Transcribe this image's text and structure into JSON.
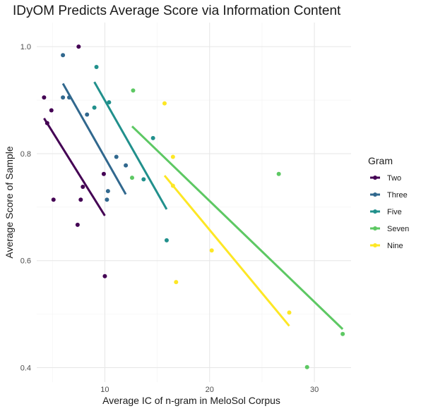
{
  "chart_data": {
    "type": "scatter",
    "title": "IDyOM Predicts Average Score via Information Content",
    "xlabel": "Average IC of n-gram in MeloSol Corpus",
    "ylabel": "Average Score of Sample",
    "xlim": [
      3.5,
      33.5
    ],
    "ylim": [
      0.373,
      1.045
    ],
    "x_ticks": [
      10,
      20,
      30
    ],
    "y_ticks": [
      0.4,
      0.6,
      0.8,
      1.0
    ],
    "y_tick_labels": [
      "0.4",
      "0.6",
      "0.8",
      "1.0"
    ],
    "grid": true,
    "legend_title": "Gram",
    "legend_position": "right",
    "series": [
      {
        "name": "Two",
        "color": "#440154",
        "points": [
          [
            4.2,
            0.905
          ],
          [
            4.5,
            0.857
          ],
          [
            4.9,
            0.881
          ],
          [
            5.1,
            0.714
          ],
          [
            7.5,
            1.0
          ],
          [
            7.4,
            0.667
          ],
          [
            7.7,
            0.714
          ],
          [
            7.9,
            0.738
          ],
          [
            9.9,
            0.762
          ],
          [
            10.0,
            0.571
          ]
        ],
        "fit": [
          [
            4.2,
            0.866
          ],
          [
            10.0,
            0.684
          ]
        ]
      },
      {
        "name": "Three",
        "color": "#31688E",
        "points": [
          [
            6.0,
            0.984
          ],
          [
            6.0,
            0.905
          ],
          [
            6.6,
            0.905
          ],
          [
            8.3,
            0.873
          ],
          [
            10.2,
            0.714
          ],
          [
            10.3,
            0.73
          ],
          [
            11.1,
            0.794
          ],
          [
            12.0,
            0.778
          ]
        ],
        "fit": [
          [
            6.0,
            0.931
          ],
          [
            12.0,
            0.724
          ]
        ]
      },
      {
        "name": "Five",
        "color": "#21908C",
        "points": [
          [
            9.2,
            0.962
          ],
          [
            9.0,
            0.886
          ],
          [
            10.4,
            0.896
          ],
          [
            13.7,
            0.752
          ],
          [
            14.6,
            0.829
          ],
          [
            15.9,
            0.638
          ]
        ],
        "fit": [
          [
            9.0,
            0.934
          ],
          [
            15.9,
            0.696
          ]
        ]
      },
      {
        "name": "Seven",
        "color": "#5DC863",
        "points": [
          [
            12.7,
            0.918
          ],
          [
            12.6,
            0.755
          ],
          [
            26.6,
            0.762
          ],
          [
            29.3,
            0.401
          ],
          [
            32.7,
            0.463
          ]
        ],
        "fit": [
          [
            12.6,
            0.851
          ],
          [
            32.7,
            0.472
          ]
        ]
      },
      {
        "name": "Nine",
        "color": "#FDE725",
        "points": [
          [
            15.7,
            0.894
          ],
          [
            16.5,
            0.794
          ],
          [
            16.5,
            0.74
          ],
          [
            16.8,
            0.56
          ],
          [
            20.2,
            0.619
          ],
          [
            27.6,
            0.503
          ]
        ],
        "fit": [
          [
            15.7,
            0.759
          ],
          [
            27.6,
            0.478
          ]
        ]
      }
    ]
  }
}
